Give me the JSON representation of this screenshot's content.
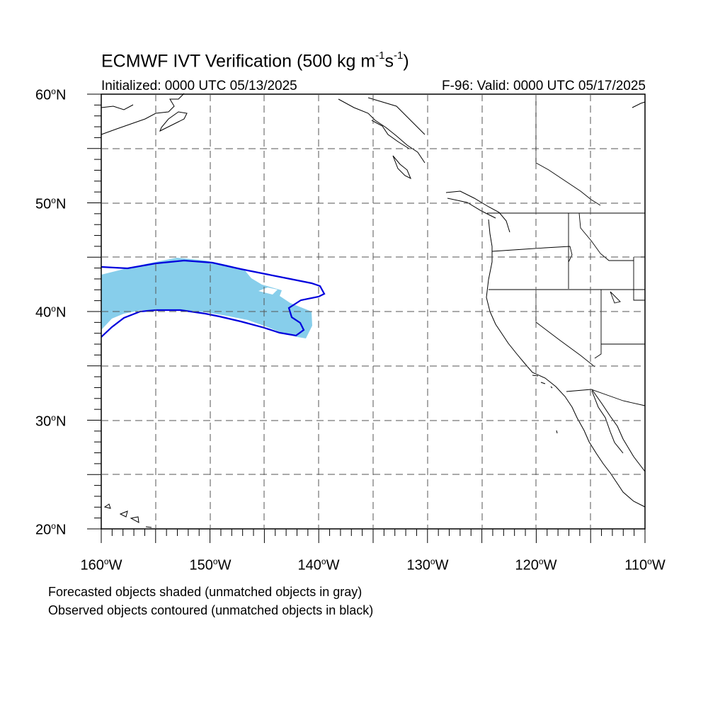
{
  "title": {
    "main": "ECMWF IVT Verification (500 kg m",
    "exp1": "-1",
    "mid": "s",
    "exp2": "-1",
    "end": ")"
  },
  "initialized": "Initialized: 0000 UTC 05/13/2025",
  "valid": "F-96: Valid: 0000 UTC 05/17/2025",
  "lat_labels": [
    "60oN",
    "50oN",
    "40oN",
    "30oN",
    "20oN"
  ],
  "lat_label_parts": [
    {
      "num": "60",
      "deg": "o",
      "dir": "N"
    },
    {
      "num": "50",
      "deg": "o",
      "dir": "N"
    },
    {
      "num": "40",
      "deg": "o",
      "dir": "N"
    },
    {
      "num": "30",
      "deg": "o",
      "dir": "N"
    },
    {
      "num": "20",
      "deg": "o",
      "dir": "N"
    }
  ],
  "lon_label_parts": [
    {
      "num": "160",
      "deg": "o",
      "dir": "W"
    },
    {
      "num": "150",
      "deg": "o",
      "dir": "W"
    },
    {
      "num": "140",
      "deg": "o",
      "dir": "W"
    },
    {
      "num": "130",
      "deg": "o",
      "dir": "W"
    },
    {
      "num": "120",
      "deg": "o",
      "dir": "W"
    },
    {
      "num": "110",
      "deg": "o",
      "dir": "W"
    }
  ],
  "legend": {
    "line1": "Forecasted objects shaded (unmatched objects in gray)",
    "line2": "Observed objects contoured (unmatched objects in black)"
  },
  "map_extent": {
    "lon_min": -160,
    "lon_max": -110,
    "lat_min": 20,
    "lat_max": 60
  },
  "colors": {
    "forecast_fill": "#87ceeb",
    "observed_contour": "#0000dd",
    "grid": "#555555",
    "coast": "#000000"
  }
}
